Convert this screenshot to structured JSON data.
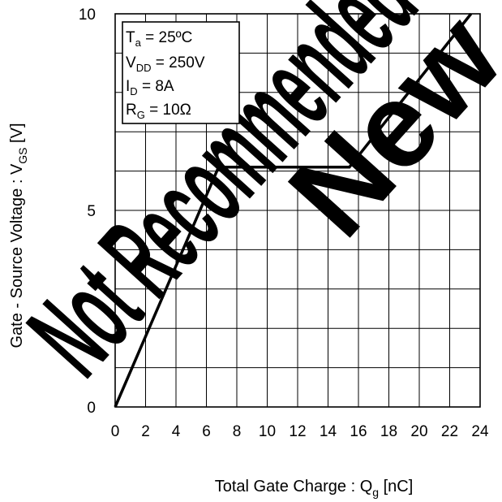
{
  "watermark": {
    "line1": "Not Recommended",
    "line2": "New"
  },
  "chart_data": {
    "type": "line",
    "xlabel": "Total Gate Charge : Q",
    "xlabel_sub": "g",
    "xlabel_unit": " [nC]",
    "ylabel": "Gate - Source Voltage : V",
    "ylabel_sub": "GS",
    "ylabel_unit": " [V]",
    "xlim": [
      0,
      24
    ],
    "ylim": [
      0,
      10
    ],
    "x_ticks": [
      "0",
      "2",
      "4",
      "6",
      "8",
      "10",
      "12",
      "14",
      "16",
      "18",
      "20",
      "22",
      "24"
    ],
    "y_ticks": [
      "0",
      "5",
      "10"
    ],
    "grid": true,
    "conditions": [
      {
        "main": "T",
        "sub": "a",
        "rest": " = 25ºC"
      },
      {
        "main": "V",
        "sub": "DD",
        "rest": " = 250V"
      },
      {
        "main": "I",
        "sub": "D",
        "rest": " = 8A"
      },
      {
        "main": "R",
        "sub": "G",
        "rest": " = 10Ω"
      }
    ],
    "series": [
      {
        "x": [
          0,
          6.8,
          15.4,
          23.4
        ],
        "y": [
          0,
          6.1,
          6.1,
          10
        ]
      }
    ]
  }
}
